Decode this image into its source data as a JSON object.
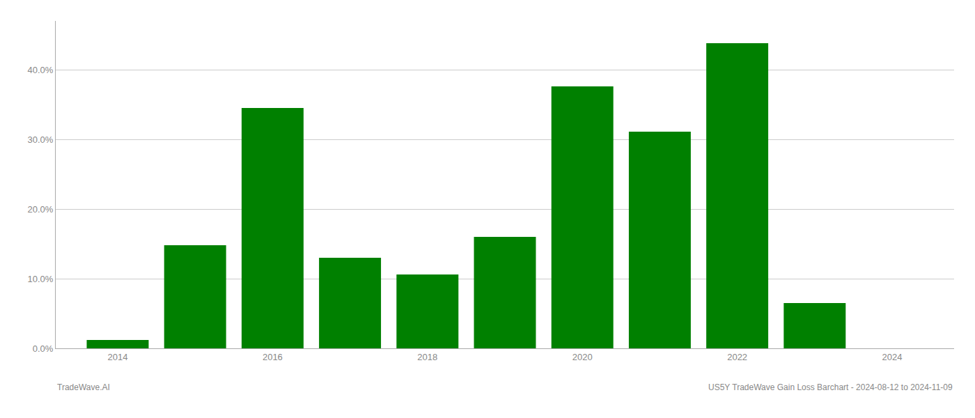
{
  "chart_data": {
    "type": "bar",
    "x": [
      2014,
      2015,
      2016,
      2017,
      2018,
      2019,
      2020,
      2021,
      2022,
      2023
    ],
    "values": [
      0.012,
      0.148,
      0.345,
      0.13,
      0.106,
      0.16,
      0.376,
      0.311,
      0.438,
      0.065
    ],
    "color": "#008000",
    "xlim": [
      2013.2,
      2024.8
    ],
    "xticks": [
      2014,
      2016,
      2018,
      2020,
      2022,
      2024
    ],
    "ylim": [
      0.0,
      0.47
    ],
    "yticks": [
      {
        "value": 0.0,
        "label": "0.0%"
      },
      {
        "value": 0.1,
        "label": "10.0%"
      },
      {
        "value": 0.2,
        "label": "20.0%"
      },
      {
        "value": 0.3,
        "label": "30.0%"
      },
      {
        "value": 0.4,
        "label": "40.0%"
      }
    ],
    "grid": true,
    "annotations": [
      "TradeWave.AI",
      "US5Y TradeWave Gain Loss Barchart - 2024-08-12 to 2024-11-09"
    ]
  }
}
